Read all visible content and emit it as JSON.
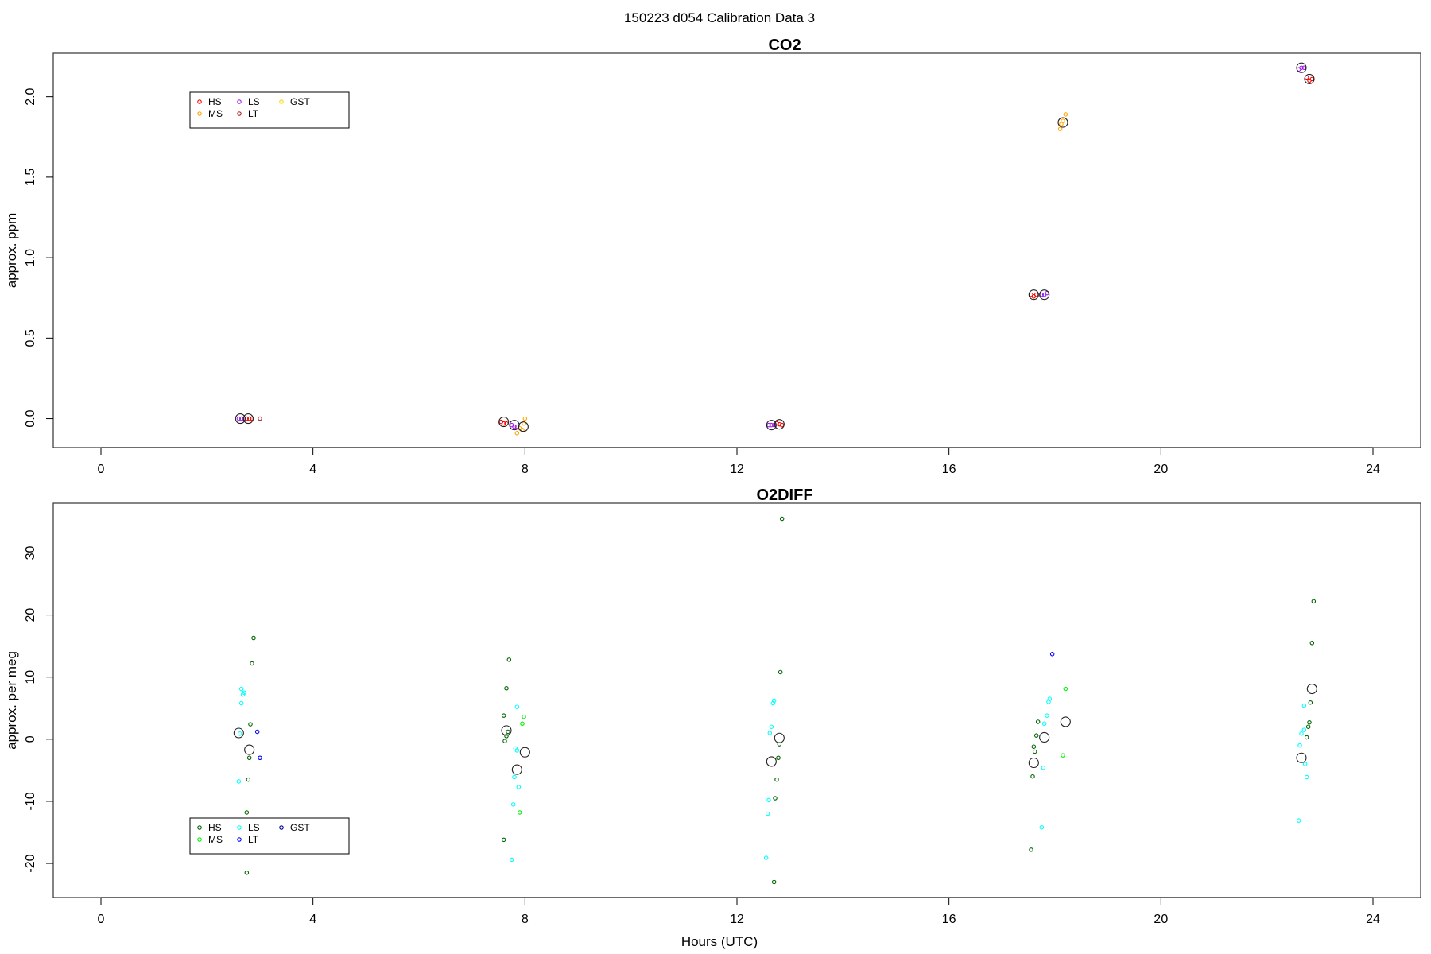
{
  "figure_title": "150223   d054   Calibration Data 3",
  "chart_data": [
    {
      "type": "scatter",
      "title": "CO2",
      "xlabel": "",
      "ylabel": "approx. ppm",
      "xlim": [
        -0.9,
        24.9
      ],
      "ylim": [
        -0.18,
        2.27
      ],
      "xticks": [
        0,
        4,
        8,
        12,
        16,
        20,
        24
      ],
      "yticks": [
        0.0,
        0.5,
        1.0,
        1.5,
        2.0
      ],
      "ytick_labels": [
        "0.0",
        "0.5",
        "1.0",
        "1.5",
        "2.0"
      ],
      "grid": false,
      "legend": {
        "placement": "top-left",
        "columns": 3,
        "entries": [
          "HS",
          "MS",
          "LS",
          "LT",
          "GST"
        ]
      },
      "series": [
        {
          "name": "HS",
          "color": "#ff0000",
          "marker": "small-circle",
          "points": [
            [
              2.75,
              0.0
            ],
            [
              2.8,
              0.0
            ],
            [
              2.85,
              0.0
            ],
            [
              7.55,
              -0.02
            ],
            [
              7.6,
              -0.03
            ],
            [
              7.65,
              -0.03
            ],
            [
              12.75,
              -0.03
            ],
            [
              12.8,
              -0.035
            ],
            [
              12.85,
              -0.04
            ],
            [
              17.55,
              0.77
            ],
            [
              17.6,
              0.76
            ],
            [
              17.65,
              0.77
            ],
            [
              22.75,
              2.12
            ],
            [
              22.8,
              2.1
            ],
            [
              22.85,
              2.11
            ]
          ]
        },
        {
          "name": "MS",
          "color": "#ffa500",
          "marker": "small-circle",
          "points": [
            [
              7.9,
              -0.06
            ],
            [
              7.95,
              -0.07
            ],
            [
              7.98,
              -0.03
            ],
            [
              8.0,
              0.0
            ],
            [
              7.85,
              -0.09
            ],
            [
              18.1,
              1.8
            ],
            [
              18.15,
              1.85
            ],
            [
              18.2,
              1.89
            ],
            [
              18.12,
              1.83
            ]
          ]
        },
        {
          "name": "LS",
          "color": "#a020f0",
          "marker": "small-circle",
          "points": [
            [
              2.6,
              0.0
            ],
            [
              2.65,
              0.0
            ],
            [
              2.7,
              0.0
            ],
            [
              7.75,
              -0.04
            ],
            [
              7.8,
              -0.05
            ],
            [
              7.85,
              -0.05
            ],
            [
              12.6,
              -0.04
            ],
            [
              12.65,
              -0.04
            ],
            [
              12.7,
              -0.04
            ],
            [
              17.75,
              0.77
            ],
            [
              17.8,
              0.77
            ],
            [
              17.85,
              0.78
            ],
            [
              22.6,
              2.17
            ],
            [
              22.65,
              2.18
            ],
            [
              22.7,
              2.18
            ]
          ]
        },
        {
          "name": "LT",
          "color": "#b22222",
          "marker": "small-circle",
          "points": [
            [
              3.0,
              0.0
            ]
          ]
        },
        {
          "name": "GST",
          "color": "#ffd700",
          "marker": "small-circle",
          "points": []
        }
      ],
      "means": [
        [
          2.63,
          0.0
        ],
        [
          2.78,
          0.0
        ],
        [
          7.6,
          -0.02
        ],
        [
          7.8,
          -0.04
        ],
        [
          7.97,
          -0.05
        ],
        [
          12.65,
          -0.04
        ],
        [
          12.8,
          -0.035
        ],
        [
          17.6,
          0.77
        ],
        [
          17.8,
          0.77
        ],
        [
          18.15,
          1.84
        ],
        [
          22.65,
          2.18
        ],
        [
          22.8,
          2.11
        ]
      ]
    },
    {
      "type": "scatter",
      "title": "O2DIFF",
      "xlabel": "Hours (UTC)",
      "ylabel": "approx. per meg",
      "xlim": [
        -0.9,
        24.9
      ],
      "ylim": [
        -25.5,
        38.0
      ],
      "xticks": [
        0,
        4,
        8,
        12,
        16,
        20,
        24
      ],
      "yticks": [
        -20,
        -10,
        0,
        10,
        20,
        30
      ],
      "ytick_labels": [
        "-20",
        "-10",
        "0",
        "10",
        "20",
        "30"
      ],
      "grid": false,
      "legend": {
        "placement": "bottom-left",
        "columns": 3,
        "entries": [
          "HS",
          "MS",
          "LS",
          "LT",
          "GST"
        ]
      },
      "series": [
        {
          "name": "HS",
          "color": "#006400",
          "marker": "small-circle",
          "points": [
            [
              2.75,
              -21.5
            ],
            [
              2.75,
              -11.8
            ],
            [
              2.78,
              -6.5
            ],
            [
              2.8,
              -3.0
            ],
            [
              2.82,
              2.4
            ],
            [
              2.85,
              12.2
            ],
            [
              2.88,
              16.3
            ],
            [
              7.6,
              -16.2
            ],
            [
              7.62,
              -0.3
            ],
            [
              7.65,
              0.5
            ],
            [
              7.68,
              1.2
            ],
            [
              7.6,
              3.8
            ],
            [
              7.65,
              8.2
            ],
            [
              7.7,
              12.8
            ],
            [
              12.7,
              -23.0
            ],
            [
              12.72,
              -9.5
            ],
            [
              12.75,
              -6.5
            ],
            [
              12.78,
              -3.0
            ],
            [
              12.8,
              -0.8
            ],
            [
              12.82,
              10.8
            ],
            [
              12.85,
              35.5
            ],
            [
              17.55,
              -17.8
            ],
            [
              17.58,
              -6.0
            ],
            [
              17.6,
              -1.2
            ],
            [
              17.62,
              -2.0
            ],
            [
              17.65,
              0.6
            ],
            [
              17.68,
              2.8
            ],
            [
              22.75,
              0.3
            ],
            [
              22.78,
              2.0
            ],
            [
              22.8,
              2.7
            ],
            [
              22.82,
              5.9
            ],
            [
              22.85,
              15.5
            ],
            [
              22.88,
              22.2
            ]
          ]
        },
        {
          "name": "MS",
          "color": "#00ee00",
          "marker": "small-circle",
          "points": [
            [
              7.9,
              -11.8
            ],
            [
              7.95,
              2.5
            ],
            [
              7.98,
              3.6
            ],
            [
              18.15,
              -2.6
            ],
            [
              18.2,
              8.1
            ]
          ]
        },
        {
          "name": "LS",
          "color": "#00ffff",
          "marker": "small-circle",
          "points": [
            [
              2.6,
              -6.8
            ],
            [
              2.62,
              0.9
            ],
            [
              2.65,
              5.8
            ],
            [
              2.68,
              7.2
            ],
            [
              2.7,
              7.5
            ],
            [
              2.65,
              8.1
            ],
            [
              7.75,
              -19.4
            ],
            [
              7.78,
              -10.5
            ],
            [
              7.8,
              -6.1
            ],
            [
              7.85,
              -1.8
            ],
            [
              7.82,
              -1.5
            ],
            [
              7.88,
              -7.7
            ],
            [
              7.85,
              5.2
            ],
            [
              12.55,
              -19.1
            ],
            [
              12.58,
              -12.0
            ],
            [
              12.6,
              -9.8
            ],
            [
              12.62,
              1.0
            ],
            [
              12.65,
              2.0
            ],
            [
              12.68,
              5.8
            ],
            [
              12.7,
              6.2
            ],
            [
              17.75,
              -14.2
            ],
            [
              17.78,
              -4.6
            ],
            [
              17.8,
              2.5
            ],
            [
              17.85,
              3.8
            ],
            [
              17.88,
              6.0
            ],
            [
              17.9,
              6.5
            ],
            [
              22.6,
              -13.1
            ],
            [
              22.62,
              -1.0
            ],
            [
              22.65,
              0.9
            ],
            [
              22.7,
              5.4
            ],
            [
              22.72,
              -4.0
            ],
            [
              22.75,
              -6.1
            ],
            [
              22.7,
              1.5
            ]
          ]
        },
        {
          "name": "LT",
          "color": "#0000ff",
          "marker": "small-circle",
          "points": [
            [
              2.95,
              1.2
            ],
            [
              3.0,
              -3.0
            ],
            [
              17.95,
              13.7
            ]
          ]
        },
        {
          "name": "GST",
          "color": "#00008b",
          "marker": "small-circle",
          "points": []
        }
      ],
      "means": [
        [
          2.6,
          1.0
        ],
        [
          2.8,
          -1.7
        ],
        [
          7.65,
          1.4
        ],
        [
          7.85,
          -4.9
        ],
        [
          8.0,
          -2.1
        ],
        [
          12.65,
          -3.6
        ],
        [
          12.8,
          0.2
        ],
        [
          17.6,
          -3.8
        ],
        [
          17.8,
          0.3
        ],
        [
          18.2,
          2.8
        ],
        [
          22.65,
          -3.0
        ],
        [
          22.85,
          8.1
        ]
      ]
    }
  ]
}
